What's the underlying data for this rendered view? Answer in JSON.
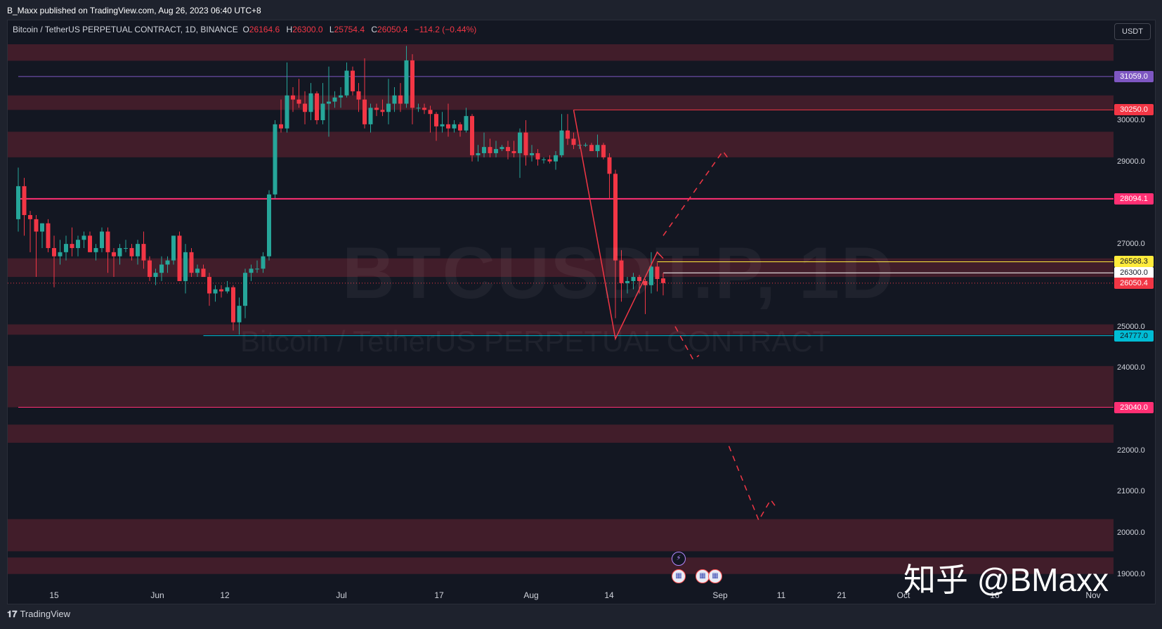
{
  "header": {
    "publisher_line": "B_Maxx published on TradingView.com, Aug 26, 2023 06:40 UTC+8"
  },
  "legend": {
    "symbol": "Bitcoin / TetherUS PERPETUAL CONTRACT, 1D, BINANCE",
    "open_label": "O",
    "open": "26164.6",
    "high_label": "H",
    "high": "26300.0",
    "low_label": "L",
    "low": "25754.4",
    "close_label": "C",
    "close": "26050.4",
    "change": "−114.2 (−0.44%)"
  },
  "currency": "USDT",
  "watermark": {
    "big": "BTCUSDT.P, 1D",
    "small": "Bitcoin / TetherUS PERPETUAL CONTRACT"
  },
  "overlay_text": "知乎 @BMaxx",
  "footer": {
    "logo": "𝟏𝟕",
    "brand": "TradingView"
  },
  "colors": {
    "background": "#131722",
    "up": "#26a69a",
    "down": "#f23645",
    "zone": "#4a1f2b",
    "line_magenta": "#ff2f73",
    "line_purple": "#7e57c2",
    "line_cyan": "#00bcd4",
    "line_yellow": "#ffeb3b",
    "line_white": "#ffffff"
  },
  "chart_data": {
    "type": "candlestick",
    "price_range": [
      18900,
      32000
    ],
    "x_ticks": [
      "15",
      "Jun",
      "12",
      "Jul",
      "17",
      "Aug",
      "14",
      "Sep",
      "11",
      "21",
      "Oct",
      "16",
      "Nov"
    ],
    "y_ticks": [
      "30000.0",
      "29000.0",
      "27000.0",
      "25000.0",
      "24000.0",
      "22000.0",
      "21000.0",
      "20000.0",
      "19000.0"
    ],
    "price_tags": [
      {
        "value": 31059.0,
        "label": "31059.0",
        "bg": "#7e57c2",
        "fg": "#ffffff"
      },
      {
        "value": 30250.0,
        "label": "30250.0",
        "bg": "#f23645",
        "fg": "#ffffff"
      },
      {
        "value": 28094.1,
        "label": "28094.1",
        "bg": "#ff2f73",
        "fg": "#ffffff"
      },
      {
        "value": 26568.3,
        "label": "26568.3",
        "bg": "#ffeb3b",
        "fg": "#131722"
      },
      {
        "value": 26300.0,
        "label": "26300.0",
        "bg": "#ffffff",
        "fg": "#131722"
      },
      {
        "value": 26050.4,
        "label": "26050.4",
        "bg": "#f23645",
        "fg": "#ffffff"
      },
      {
        "value": 24777.0,
        "label": "24777.0",
        "bg": "#00bcd4",
        "fg": "#131722"
      },
      {
        "value": 23040.0,
        "label": "23040.0",
        "bg": "#ff2f73",
        "fg": "#ffffff"
      }
    ],
    "zones": [
      [
        31440,
        31840
      ],
      [
        30250,
        30600
      ],
      [
        29100,
        29720
      ],
      [
        26200,
        26650
      ],
      [
        24800,
        25050
      ],
      [
        23040,
        24040
      ],
      [
        22180,
        22620
      ],
      [
        19550,
        20330
      ],
      [
        19000,
        19400
      ]
    ],
    "horizontal_lines": [
      {
        "value": 31059.0,
        "color": "#7e57c2",
        "from": "2023-05-09",
        "width": 1
      },
      {
        "value": 30250.0,
        "color": "#f23645",
        "from": "2023-08-10",
        "width": 1
      },
      {
        "value": 28094.1,
        "color": "#ff2f73",
        "from": "2023-05-09",
        "width": 2
      },
      {
        "value": 26568.3,
        "color": "#ffeb3b",
        "from": "2023-08-24",
        "width": 1
      },
      {
        "value": 26300.0,
        "color": "#ffffff",
        "from": "2023-08-25",
        "width": 1
      },
      {
        "value": 24777.0,
        "color": "#00bcd4",
        "from": "2023-06-09",
        "width": 1
      },
      {
        "value": 23040.0,
        "color": "#ff2f73",
        "from": "2023-05-09",
        "width": 1
      }
    ],
    "drawn_path": [
      [
        "2023-08-10",
        30250
      ],
      [
        "2023-08-17",
        24700
      ],
      [
        "2023-08-24",
        26800
      ],
      [
        "2023-08-25",
        26650
      ]
    ],
    "projection_up": [
      [
        "2023-08-25",
        27200
      ],
      [
        "2023-09-04",
        29250
      ],
      [
        "2023-09-05",
        29050
      ]
    ],
    "projection_side": [
      [
        "2023-08-27",
        25000
      ],
      [
        "2023-08-30",
        24200
      ],
      [
        "2023-08-31",
        24300
      ]
    ],
    "projection_down": [
      [
        "2023-09-05",
        22100
      ],
      [
        "2023-09-10",
        20300
      ],
      [
        "2023-09-12",
        20800
      ],
      [
        "2023-09-13",
        20600
      ]
    ],
    "candles": [
      [
        "2023-05-09",
        27600,
        28850,
        27300,
        28400
      ],
      [
        "2023-05-10",
        28400,
        28600,
        27200,
        27700
      ],
      [
        "2023-05-11",
        27700,
        27800,
        26800,
        27600
      ],
      [
        "2023-05-12",
        27600,
        27700,
        26200,
        27300
      ],
      [
        "2023-05-13",
        27300,
        27500,
        26900,
        27500
      ],
      [
        "2023-05-14",
        27500,
        27600,
        26800,
        26900
      ],
      [
        "2023-05-15",
        26900,
        27200,
        25950,
        26700
      ],
      [
        "2023-05-16",
        26700,
        27100,
        26500,
        26800
      ],
      [
        "2023-05-17",
        26800,
        27200,
        26600,
        27000
      ],
      [
        "2023-05-18",
        27000,
        27400,
        26700,
        26900
      ],
      [
        "2023-05-19",
        26900,
        27200,
        26700,
        27100
      ],
      [
        "2023-05-20",
        27100,
        27300,
        26900,
        27200
      ],
      [
        "2023-05-21",
        27200,
        27300,
        26800,
        26800
      ],
      [
        "2023-05-22",
        26800,
        27000,
        26600,
        26900
      ],
      [
        "2023-05-23",
        26900,
        27400,
        26800,
        27300
      ],
      [
        "2023-05-24",
        27300,
        27400,
        26300,
        26800
      ],
      [
        "2023-05-25",
        26800,
        26900,
        26200,
        26700
      ],
      [
        "2023-05-26",
        26700,
        27000,
        26500,
        26900
      ],
      [
        "2023-05-27",
        26900,
        27100,
        26800,
        26900
      ],
      [
        "2023-05-28",
        26900,
        27000,
        26600,
        26700
      ],
      [
        "2023-05-29",
        26700,
        27100,
        26500,
        27000
      ],
      [
        "2023-05-30",
        27000,
        27300,
        26400,
        26600
      ],
      [
        "2023-05-31",
        26600,
        26700,
        26100,
        26200
      ],
      [
        "2023-06-01",
        26200,
        26400,
        26000,
        26300
      ],
      [
        "2023-06-02",
        26300,
        26700,
        26100,
        26500
      ],
      [
        "2023-06-03",
        26500,
        26700,
        26300,
        26600
      ],
      [
        "2023-06-04",
        26600,
        27200,
        26500,
        27200
      ],
      [
        "2023-06-05",
        27200,
        27300,
        26100,
        26100
      ],
      [
        "2023-06-06",
        26100,
        27000,
        25800,
        26800
      ],
      [
        "2023-06-07",
        26800,
        26900,
        26200,
        26300
      ],
      [
        "2023-06-08",
        26300,
        26500,
        26200,
        26400
      ],
      [
        "2023-06-09",
        26400,
        26500,
        26200,
        26200
      ],
      [
        "2023-06-10",
        26200,
        26300,
        25500,
        25800
      ],
      [
        "2023-06-11",
        25800,
        26000,
        25600,
        25900
      ],
      [
        "2023-06-12",
        25900,
        26000,
        25700,
        25850
      ],
      [
        "2023-06-13",
        25850,
        26100,
        25800,
        25950
      ],
      [
        "2023-06-14",
        25950,
        26000,
        24900,
        25100
      ],
      [
        "2023-06-15",
        25100,
        25700,
        24800,
        25500
      ],
      [
        "2023-06-16",
        25500,
        26400,
        25200,
        26300
      ],
      [
        "2023-06-17",
        26300,
        26500,
        26100,
        26400
      ],
      [
        "2023-06-18",
        26400,
        26600,
        26300,
        26400
      ],
      [
        "2023-06-19",
        26400,
        26800,
        26300,
        26700
      ],
      [
        "2023-06-20",
        26700,
        28300,
        26600,
        28200
      ],
      [
        "2023-06-21",
        28200,
        30000,
        28100,
        29900
      ],
      [
        "2023-06-22",
        29900,
        30500,
        29700,
        29800
      ],
      [
        "2023-06-23",
        29800,
        31400,
        29700,
        30600
      ],
      [
        "2023-06-24",
        30600,
        30800,
        30200,
        30500
      ],
      [
        "2023-06-25",
        30500,
        31000,
        30300,
        30400
      ],
      [
        "2023-06-26",
        30400,
        30700,
        29900,
        30200
      ],
      [
        "2023-06-27",
        30200,
        30900,
        30000,
        30650
      ],
      [
        "2023-06-28",
        30650,
        30700,
        29900,
        30000
      ],
      [
        "2023-06-29",
        30000,
        30900,
        29900,
        30400
      ],
      [
        "2023-06-30",
        30400,
        31300,
        29600,
        30450
      ],
      [
        "2023-07-01",
        30450,
        30700,
        30300,
        30550
      ],
      [
        "2023-07-02",
        30550,
        30800,
        30300,
        30600
      ],
      [
        "2023-07-03",
        30600,
        31400,
        30550,
        31200
      ],
      [
        "2023-07-04",
        31200,
        31300,
        30600,
        30700
      ],
      [
        "2023-07-05",
        30700,
        30900,
        30200,
        30500
      ],
      [
        "2023-07-06",
        30500,
        31500,
        29800,
        29900
      ],
      [
        "2023-07-07",
        29900,
        30400,
        29700,
        30300
      ],
      [
        "2023-07-08",
        30300,
        30400,
        30100,
        30250
      ],
      [
        "2023-07-09",
        30250,
        30500,
        30100,
        30200
      ],
      [
        "2023-07-10",
        30200,
        31000,
        29900,
        30400
      ],
      [
        "2023-07-11",
        30400,
        30800,
        30200,
        30600
      ],
      [
        "2023-07-12",
        30600,
        30900,
        30200,
        30400
      ],
      [
        "2023-07-13",
        30400,
        31800,
        30300,
        31450
      ],
      [
        "2023-07-14",
        31450,
        31600,
        29900,
        30300
      ],
      [
        "2023-07-15",
        30300,
        30400,
        30200,
        30300
      ],
      [
        "2023-07-16",
        30300,
        30400,
        30150,
        30250
      ],
      [
        "2023-07-17",
        30250,
        30350,
        29700,
        30150
      ],
      [
        "2023-07-18",
        30150,
        30200,
        29500,
        29850
      ],
      [
        "2023-07-19",
        29850,
        30200,
        29700,
        29900
      ],
      [
        "2023-07-20",
        29900,
        30400,
        29600,
        29800
      ],
      [
        "2023-07-21",
        29800,
        30000,
        29700,
        29900
      ],
      [
        "2023-07-22",
        29900,
        29950,
        29600,
        29750
      ],
      [
        "2023-07-23",
        29750,
        30300,
        29700,
        30100
      ],
      [
        "2023-07-24",
        30100,
        30150,
        29000,
        29150
      ],
      [
        "2023-07-25",
        29150,
        29400,
        29000,
        29200
      ],
      [
        "2023-07-26",
        29200,
        29700,
        29100,
        29350
      ],
      [
        "2023-07-27",
        29350,
        29550,
        29100,
        29200
      ],
      [
        "2023-07-28",
        29200,
        29500,
        29100,
        29300
      ],
      [
        "2023-07-29",
        29300,
        29400,
        29250,
        29350
      ],
      [
        "2023-07-30",
        29350,
        29500,
        29050,
        29250
      ],
      [
        "2023-07-31",
        29250,
        29500,
        29100,
        29200
      ],
      [
        "2023-08-01",
        29200,
        29800,
        28600,
        29700
      ],
      [
        "2023-08-02",
        29700,
        30000,
        28900,
        29150
      ],
      [
        "2023-08-03",
        29150,
        29400,
        29000,
        29200
      ],
      [
        "2023-08-04",
        29200,
        29300,
        28900,
        29050
      ],
      [
        "2023-08-05",
        29050,
        29100,
        28950,
        29050
      ],
      [
        "2023-08-06",
        29050,
        29150,
        28950,
        29000
      ],
      [
        "2023-08-07",
        29000,
        29250,
        28800,
        29150
      ],
      [
        "2023-08-08",
        29150,
        30150,
        29100,
        29750
      ],
      [
        "2023-08-09",
        29750,
        30150,
        29400,
        29550
      ],
      [
        "2023-08-10",
        29550,
        29700,
        29300,
        29400
      ],
      [
        "2023-08-11",
        29400,
        29500,
        29300,
        29400
      ],
      [
        "2023-08-12",
        29400,
        29450,
        29350,
        29400
      ],
      [
        "2023-08-13",
        29400,
        29450,
        29250,
        29250
      ],
      [
        "2023-08-14",
        29250,
        29650,
        29100,
        29400
      ],
      [
        "2023-08-15",
        29400,
        29450,
        29050,
        29100
      ],
      [
        "2023-08-16",
        29100,
        29200,
        28100,
        28700
      ],
      [
        "2023-08-17",
        28700,
        28800,
        25200,
        26600
      ],
      [
        "2023-08-18",
        26600,
        26850,
        25600,
        26050
      ],
      [
        "2023-08-19",
        26050,
        26200,
        25800,
        26100
      ],
      [
        "2023-08-20",
        26100,
        26300,
        25900,
        26200
      ],
      [
        "2023-08-21",
        26200,
        26250,
        25800,
        26100
      ],
      [
        "2023-08-22",
        26100,
        26150,
        25300,
        26000
      ],
      [
        "2023-08-23",
        26000,
        26800,
        25800,
        26450
      ],
      [
        "2023-08-24",
        26450,
        26550,
        25850,
        26150
      ],
      [
        "2023-08-25",
        26164.6,
        26300,
        25754.4,
        26050.4
      ]
    ]
  }
}
